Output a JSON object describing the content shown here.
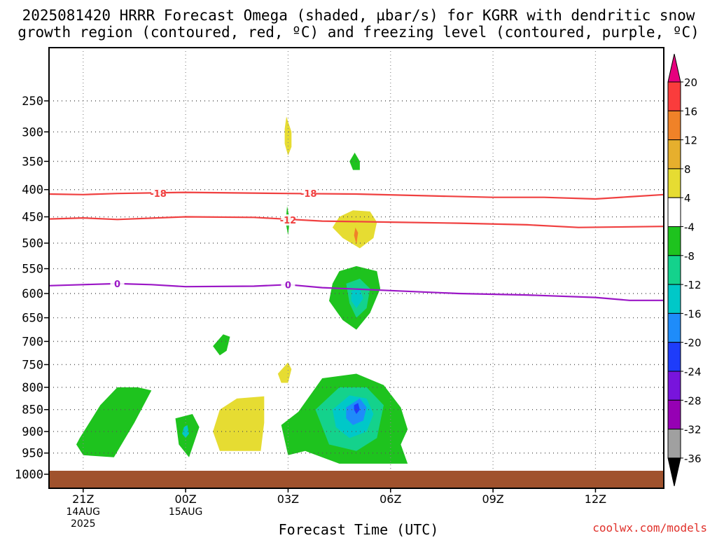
{
  "title": {
    "line1": "2025081420 HRRR Forecast Omega (shaded, µbar/s) for KGRR with dendritic snow",
    "line2": "growth region (contoured, red, ºC) and freezing level (contoured, purple, ºC)"
  },
  "credit": "coolwx.com/models",
  "chart_data": {
    "type": "heatmap",
    "xlabel": "Forecast Time (UTC)",
    "x_ticks": [
      {
        "hour": 0,
        "label": [
          "21Z",
          "14AUG",
          "2025"
        ]
      },
      {
        "hour": 3,
        "label": [
          "00Z",
          "15AUG"
        ]
      },
      {
        "hour": 6,
        "label": [
          "03Z"
        ]
      },
      {
        "hour": 9,
        "label": [
          "06Z"
        ]
      },
      {
        "hour": 12,
        "label": [
          "09Z"
        ]
      },
      {
        "hour": 15,
        "label": [
          "12Z"
        ]
      }
    ],
    "xlim_hours": [
      -1,
      17
    ],
    "y_ticks": [
      250,
      300,
      350,
      400,
      450,
      500,
      550,
      600,
      650,
      700,
      750,
      800,
      850,
      900,
      950,
      1000
    ],
    "ylim_hPa": [
      200,
      1000
    ],
    "colorbar": {
      "labels": [
        "20",
        "16",
        "12",
        "8",
        "4",
        "-4",
        "-8",
        "-12",
        "-16",
        "-20",
        "-24",
        "-28",
        "-32",
        "-36"
      ],
      "colors": [
        "#fa3c3c",
        "#f08228",
        "#e6af2d",
        "#e6dc32",
        "#ffffff",
        "#1ec31e",
        "#14d28c",
        "#00c8c8",
        "#1e8cfa",
        "#1e3cfa",
        "#7814dc",
        "#9600b4",
        "#a0a0a0"
      ],
      "top_arrow_color": "#e6007e",
      "bottom_arrow_color": "#000000"
    },
    "ground_color": "#a0522d",
    "contours": [
      {
        "name": "-18",
        "color": "#f04040",
        "points": [
          [
            -1,
            408
          ],
          [
            0,
            409
          ],
          [
            1,
            407
          ],
          [
            3,
            405
          ],
          [
            6,
            407
          ],
          [
            8,
            408
          ],
          [
            10,
            411
          ],
          [
            12,
            414
          ],
          [
            13.5,
            414
          ],
          [
            15,
            417
          ],
          [
            16,
            413
          ],
          [
            17,
            409
          ]
        ],
        "labels": [
          [
            2.2,
            407
          ],
          [
            6.6,
            407
          ]
        ]
      },
      {
        "name": "-12",
        "color": "#f04040",
        "points": [
          [
            -1,
            454
          ],
          [
            0,
            452
          ],
          [
            1,
            455
          ],
          [
            3,
            450
          ],
          [
            5,
            451
          ],
          [
            7,
            458
          ],
          [
            9,
            460
          ],
          [
            11,
            462
          ],
          [
            13,
            465
          ],
          [
            14.5,
            470
          ],
          [
            17,
            468
          ]
        ],
        "labels": [
          [
            6,
            456
          ]
        ]
      },
      {
        "name": "0",
        "color": "#9b17c6",
        "points": [
          [
            -1,
            584
          ],
          [
            0,
            582
          ],
          [
            1,
            580
          ],
          [
            2,
            582
          ],
          [
            3,
            586
          ],
          [
            5,
            585
          ],
          [
            6,
            582
          ],
          [
            7,
            588
          ],
          [
            9,
            594
          ],
          [
            11,
            600
          ],
          [
            13,
            603
          ],
          [
            15,
            608
          ],
          [
            16,
            614
          ],
          [
            17,
            614
          ]
        ],
        "labels": [
          [
            1,
            580
          ],
          [
            6,
            582
          ]
        ]
      }
    ],
    "shaded_regions": [
      {
        "value": 6,
        "color": "#e6dc32",
        "points": [
          [
            5.95,
            275
          ],
          [
            6.1,
            300
          ],
          [
            6.1,
            325
          ],
          [
            6,
            340
          ],
          [
            5.9,
            320
          ],
          [
            5.9,
            295
          ]
        ]
      },
      {
        "value": -6,
        "color": "#1ec31e",
        "points": [
          [
            7.95,
            335
          ],
          [
            8.1,
            350
          ],
          [
            8.1,
            365
          ],
          [
            7.9,
            365
          ],
          [
            7.8,
            350
          ]
        ]
      },
      {
        "value": -6,
        "color": "#1ec31e",
        "points": [
          [
            5.97,
            430
          ],
          [
            6.05,
            455
          ],
          [
            6,
            485
          ],
          [
            5.93,
            460
          ]
        ]
      },
      {
        "value": 6,
        "color": "#e6dc32",
        "points": [
          [
            7.5,
            450
          ],
          [
            7.9,
            438
          ],
          [
            8.4,
            440
          ],
          [
            8.6,
            460
          ],
          [
            8.5,
            490
          ],
          [
            8.1,
            510
          ],
          [
            7.6,
            490
          ],
          [
            7.3,
            470
          ]
        ]
      },
      {
        "value": 12,
        "color": "#f08228",
        "points": [
          [
            7.97,
            470
          ],
          [
            8.05,
            480
          ],
          [
            8,
            502
          ],
          [
            7.93,
            485
          ]
        ]
      },
      {
        "value": -6,
        "color": "#1ec31e",
        "points": [
          [
            7.3,
            580
          ],
          [
            7.5,
            555
          ],
          [
            8,
            545
          ],
          [
            8.6,
            555
          ],
          [
            8.7,
            590
          ],
          [
            8.4,
            640
          ],
          [
            8,
            675
          ],
          [
            7.6,
            655
          ],
          [
            7.2,
            615
          ]
        ]
      },
      {
        "value": -10,
        "color": "#14d28c",
        "points": [
          [
            7.7,
            580
          ],
          [
            8.1,
            570
          ],
          [
            8.4,
            590
          ],
          [
            8.3,
            630
          ],
          [
            8,
            650
          ],
          [
            7.8,
            620
          ]
        ]
      },
      {
        "value": -14,
        "color": "#00c8c8",
        "points": [
          [
            7.85,
            595
          ],
          [
            8.1,
            590
          ],
          [
            8.2,
            610
          ],
          [
            8,
            630
          ],
          [
            7.85,
            615
          ]
        ]
      },
      {
        "value": -6,
        "color": "#1ec31e",
        "points": [
          [
            4.1,
            685
          ],
          [
            4.3,
            690
          ],
          [
            4.2,
            720
          ],
          [
            4,
            730
          ],
          [
            3.8,
            710
          ]
        ]
      },
      {
        "value": 6,
        "color": "#e6dc32",
        "points": [
          [
            5.7,
            770
          ],
          [
            6,
            745
          ],
          [
            6.1,
            760
          ],
          [
            6,
            790
          ],
          [
            5.8,
            790
          ]
        ]
      },
      {
        "value": -6,
        "color": "#1ec31e",
        "points": [
          [
            -0.1,
            915
          ],
          [
            0.5,
            840
          ],
          [
            1,
            800
          ],
          [
            1.6,
            800
          ],
          [
            2,
            807
          ],
          [
            1.5,
            880
          ],
          [
            0.9,
            960
          ],
          [
            0,
            955
          ],
          [
            -0.2,
            930
          ]
        ]
      },
      {
        "value": -6,
        "color": "#1ec31e",
        "points": [
          [
            2.7,
            870
          ],
          [
            3.2,
            860
          ],
          [
            3.4,
            890
          ],
          [
            3.1,
            960
          ],
          [
            2.8,
            930
          ]
        ]
      },
      {
        "value": -12,
        "color": "#00c8c8",
        "points": [
          [
            2.95,
            890
          ],
          [
            3.05,
            885
          ],
          [
            3.1,
            905
          ],
          [
            3,
            915
          ],
          [
            2.9,
            905
          ]
        ]
      },
      {
        "value": 6,
        "color": "#e6dc32",
        "points": [
          [
            4,
            850
          ],
          [
            4.5,
            825
          ],
          [
            5.3,
            820
          ],
          [
            5.3,
            880
          ],
          [
            5.2,
            945
          ],
          [
            4,
            945
          ],
          [
            3.8,
            900
          ]
        ]
      },
      {
        "value": -6,
        "color": "#1ec31e",
        "points": [
          [
            5.8,
            885
          ],
          [
            6.3,
            855
          ],
          [
            7,
            780
          ],
          [
            8,
            770
          ],
          [
            8.8,
            795
          ],
          [
            9.3,
            845
          ],
          [
            9.5,
            895
          ],
          [
            9.3,
            930
          ],
          [
            9.5,
            975
          ],
          [
            7.5,
            975
          ],
          [
            6.5,
            945
          ],
          [
            6,
            955
          ]
        ]
      },
      {
        "value": -10,
        "color": "#14d28c",
        "points": [
          [
            6.8,
            850
          ],
          [
            7.5,
            800
          ],
          [
            8.3,
            800
          ],
          [
            8.8,
            840
          ],
          [
            8.6,
            915
          ],
          [
            8,
            945
          ],
          [
            7.2,
            930
          ]
        ]
      },
      {
        "value": -14,
        "color": "#00c8c8",
        "points": [
          [
            7.3,
            850
          ],
          [
            7.8,
            818
          ],
          [
            8.3,
            825
          ],
          [
            8.5,
            860
          ],
          [
            8.3,
            900
          ],
          [
            7.8,
            915
          ],
          [
            7.4,
            890
          ]
        ]
      },
      {
        "value": -18,
        "color": "#1e8cfa",
        "points": [
          [
            7.7,
            845
          ],
          [
            8.1,
            825
          ],
          [
            8.3,
            845
          ],
          [
            8.2,
            875
          ],
          [
            7.9,
            885
          ],
          [
            7.7,
            870
          ]
        ]
      },
      {
        "value": -22,
        "color": "#1e3cfa",
        "points": [
          [
            7.93,
            840
          ],
          [
            8.05,
            835
          ],
          [
            8.1,
            850
          ],
          [
            8,
            860
          ],
          [
            7.93,
            850
          ]
        ]
      }
    ]
  }
}
